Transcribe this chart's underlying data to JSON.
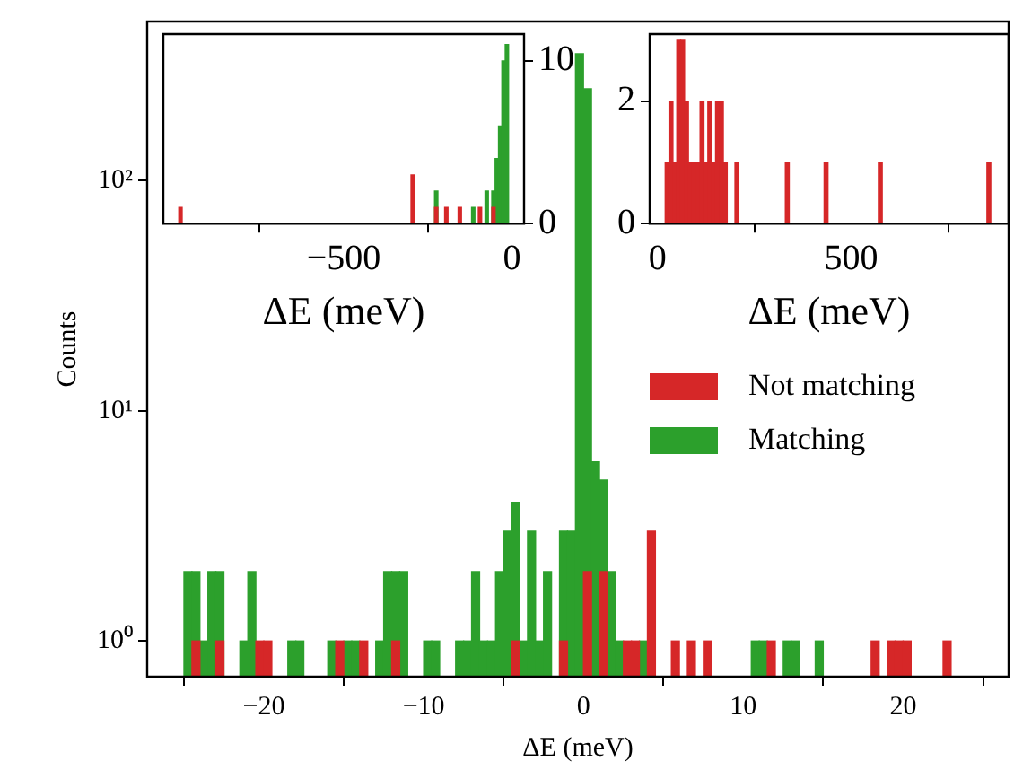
{
  "chart_data": [
    {
      "type": "histogram",
      "xlabel": "ΔE (meV)",
      "ylabel": "Counts",
      "log": "y",
      "legend": "right",
      "xlim": [
        -27.3,
        26.6
      ],
      "xticks": [
        {
          "value": -20,
          "label": "−20"
        },
        {
          "value": -10,
          "label": "−10"
        },
        0,
        10,
        20
      ],
      "ylim": [
        0.73,
        490
      ],
      "yticks": [
        {
          "value": 1,
          "label": "10⁰"
        },
        {
          "value": 10,
          "label": "10¹"
        },
        {
          "value": 100,
          "label": "10²"
        }
      ],
      "bins": [
        -25,
        -24.5,
        -24,
        -23.5,
        -23,
        -22.5,
        -22,
        -21.5,
        -21,
        -20.5,
        -20,
        -19.5,
        -19,
        -18.5,
        -18,
        -17.5,
        -17,
        -16.5,
        -16,
        -15.5,
        -15,
        -14.5,
        -14,
        -13.5,
        -13,
        -12.5,
        -12,
        -11.5,
        -11,
        -10.5,
        -10,
        -9.5,
        -9,
        -8.5,
        -8,
        -7.5,
        -7,
        -6.5,
        -6,
        -5.5,
        -5,
        -4.5,
        -4,
        -3.5,
        -3,
        -2.5,
        -2,
        -1.5,
        -1,
        -0.5,
        0,
        0.5,
        1,
        1.5,
        2,
        2.5,
        3,
        3.5,
        4,
        4.5,
        5,
        5.5,
        6,
        6.5,
        7,
        7.5,
        8,
        8.5,
        9,
        9.5,
        10,
        10.5,
        11,
        11.5,
        12,
        12.5,
        13,
        13.5,
        14,
        14.5,
        15,
        15.5,
        16,
        16.5,
        17,
        17.5,
        18,
        18.5,
        19,
        19.5,
        20,
        20.5,
        21,
        21.5,
        22,
        22.5,
        23
      ],
      "series": [
        {
          "name": "Not matching",
          "color": "#d62728",
          "values": [
            null,
            1,
            null,
            null,
            1,
            null,
            null,
            null,
            null,
            1,
            1,
            null,
            null,
            null,
            null,
            null,
            null,
            null,
            null,
            1,
            null,
            null,
            1,
            null,
            null,
            null,
            1,
            null,
            null,
            null,
            null,
            null,
            null,
            null,
            null,
            null,
            null,
            null,
            null,
            null,
            null,
            1,
            null,
            null,
            null,
            null,
            null,
            1,
            null,
            null,
            2,
            null,
            2,
            null,
            null,
            1,
            1,
            null,
            3,
            null,
            null,
            1,
            null,
            1,
            null,
            1,
            null,
            null,
            null,
            null,
            null,
            null,
            null,
            1,
            null,
            null,
            null,
            null,
            null,
            null,
            null,
            null,
            null,
            null,
            null,
            null,
            1,
            null,
            1,
            1,
            1,
            null,
            null,
            null,
            null,
            1
          ]
        },
        {
          "name": "Matching",
          "color": "#2ca02c",
          "values": [
            2,
            2,
            1,
            2,
            2,
            null,
            null,
            1,
            2,
            null,
            null,
            null,
            null,
            1,
            1,
            null,
            null,
            null,
            1,
            null,
            1,
            1,
            null,
            null,
            1,
            2,
            2,
            2,
            null,
            null,
            1,
            1,
            null,
            null,
            1,
            1,
            2,
            1,
            1,
            2,
            3,
            4,
            1,
            3,
            1,
            2,
            null,
            3,
            3,
            355,
            250,
            6,
            5,
            2,
            1,
            null,
            null,
            1,
            null,
            null,
            null,
            null,
            null,
            null,
            null,
            null,
            null,
            null,
            null,
            null,
            null,
            1,
            1,
            null,
            null,
            1,
            1,
            null,
            null,
            1,
            null,
            null,
            null,
            null,
            null,
            null,
            null,
            null,
            null,
            null,
            null,
            null,
            null,
            null,
            null,
            null
          ]
        }
      ]
    },
    {
      "type": "histogram",
      "xlabel": "ΔE (meV)",
      "xlim": [
        -1036,
        36
      ],
      "xticks": [
        {
          "value": -500,
          "label": "−500"
        },
        0
      ],
      "ylim": [
        0,
        11.65
      ],
      "yticks": [
        0,
        10
      ],
      "bins": [
        -1000,
        -990,
        -980,
        -970,
        -960,
        -950,
        -940,
        -930,
        -920,
        -910,
        -900,
        -890,
        -880,
        -870,
        -860,
        -850,
        -840,
        -830,
        -820,
        -810,
        -800,
        -790,
        -780,
        -770,
        -760,
        -750,
        -740,
        -730,
        -720,
        -710,
        -700,
        -690,
        -680,
        -670,
        -660,
        -650,
        -640,
        -630,
        -620,
        -610,
        -600,
        -590,
        -580,
        -570,
        -560,
        -550,
        -540,
        -530,
        -520,
        -510,
        -500,
        -490,
        -480,
        -470,
        -460,
        -450,
        -440,
        -430,
        -420,
        -410,
        -400,
        -390,
        -380,
        -370,
        -360,
        -350,
        -340,
        -330,
        -320,
        -310,
        -300,
        -290,
        -280,
        -270,
        -260,
        -250,
        -240,
        -230,
        -220,
        -210,
        -200,
        -190,
        -180,
        -170,
        -160,
        -150,
        -140,
        -130,
        -120,
        -110,
        -100,
        -90,
        -80,
        -70,
        -60,
        -50,
        -40,
        -30,
        -20,
        -10,
        0
      ],
      "series": [
        {
          "color": "#d62728",
          "values": [
            null,
            1,
            null,
            null,
            null,
            null,
            null,
            null,
            null,
            null,
            null,
            null,
            null,
            null,
            null,
            null,
            null,
            null,
            null,
            null,
            null,
            null,
            null,
            null,
            null,
            null,
            null,
            null,
            null,
            null,
            null,
            null,
            null,
            null,
            null,
            null,
            null,
            null,
            null,
            null,
            null,
            null,
            null,
            null,
            null,
            null,
            null,
            null,
            null,
            null,
            null,
            null,
            null,
            null,
            null,
            null,
            null,
            null,
            null,
            null,
            null,
            null,
            null,
            null,
            null,
            null,
            null,
            null,
            null,
            null,
            3,
            null,
            null,
            null,
            null,
            null,
            null,
            1,
            null,
            null,
            1,
            null,
            null,
            null,
            1,
            null,
            null,
            null,
            null,
            null,
            1,
            null,
            null,
            null,
            1,
            null,
            null,
            null,
            null,
            null
          ]
        },
        {
          "color": "#2ca02c",
          "values": [
            null,
            null,
            null,
            null,
            null,
            null,
            null,
            null,
            null,
            null,
            null,
            null,
            null,
            null,
            null,
            null,
            null,
            null,
            null,
            null,
            null,
            null,
            null,
            null,
            null,
            null,
            null,
            null,
            null,
            null,
            null,
            null,
            null,
            null,
            null,
            null,
            null,
            null,
            null,
            null,
            null,
            null,
            null,
            null,
            null,
            null,
            null,
            null,
            null,
            null,
            null,
            null,
            null,
            null,
            null,
            null,
            null,
            null,
            null,
            null,
            null,
            null,
            null,
            null,
            null,
            null,
            null,
            null,
            null,
            null,
            null,
            null,
            null,
            null,
            null,
            null,
            null,
            2,
            null,
            null,
            null,
            null,
            null,
            null,
            null,
            null,
            null,
            null,
            1,
            null,
            null,
            null,
            2,
            null,
            2,
            4,
            6,
            10,
            11,
            null
          ]
        }
      ]
    },
    {
      "type": "histogram",
      "xlabel": "ΔE (meV)",
      "xlim": [
        -20,
        906
      ],
      "xticks": [
        0,
        500
      ],
      "ylim": [
        0,
        3.1
      ],
      "yticks": [
        0,
        2
      ],
      "bins": [
        0,
        10,
        20,
        30,
        40,
        50,
        60,
        70,
        80,
        90,
        100,
        110,
        120,
        130,
        140,
        150,
        160,
        170,
        180,
        190,
        200,
        210,
        220,
        230,
        240,
        250,
        260,
        270,
        280,
        290,
        300,
        310,
        320,
        330,
        340,
        350,
        360,
        370,
        380,
        390,
        400,
        410,
        420,
        430,
        440,
        450,
        460,
        470,
        480,
        490,
        500,
        510,
        520,
        530,
        540,
        550,
        560,
        570,
        580,
        590,
        600,
        610,
        620,
        630,
        640,
        650,
        660,
        670,
        680,
        690,
        700,
        710,
        720,
        730,
        740,
        750,
        760,
        770,
        780,
        790,
        800,
        810,
        820,
        830,
        840,
        850,
        860,
        870,
        880,
        890,
        900
      ],
      "series": [
        {
          "color": "#d62728",
          "values": [
            null,
            null,
            1,
            2,
            1,
            3,
            3,
            2,
            1,
            1,
            1,
            2,
            1,
            2,
            1,
            2,
            2,
            1,
            null,
            null,
            1,
            null,
            null,
            null,
            null,
            null,
            null,
            null,
            null,
            null,
            null,
            null,
            null,
            1,
            null,
            null,
            null,
            null,
            null,
            null,
            null,
            null,
            null,
            1,
            null,
            null,
            null,
            null,
            null,
            null,
            null,
            null,
            null,
            null,
            null,
            null,
            null,
            1,
            null,
            null,
            null,
            null,
            null,
            null,
            null,
            null,
            null,
            null,
            null,
            null,
            null,
            null,
            null,
            null,
            null,
            null,
            null,
            null,
            null,
            null,
            null,
            null,
            null,
            null,
            null,
            1,
            null,
            null,
            null,
            null
          ]
        }
      ]
    }
  ]
}
